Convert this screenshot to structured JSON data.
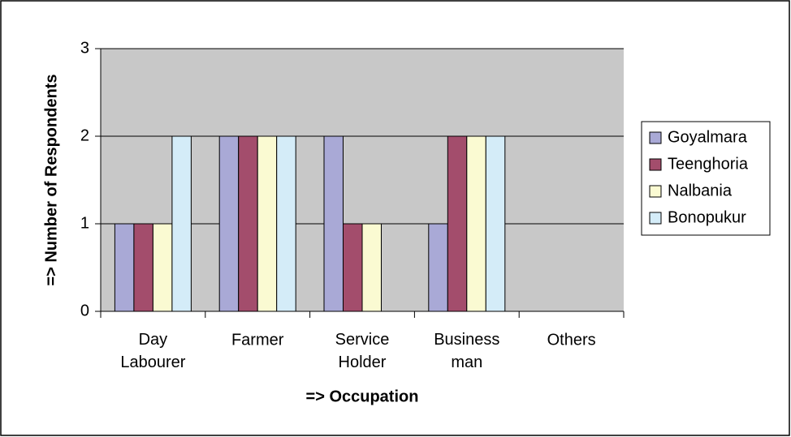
{
  "chart_data": {
    "type": "bar",
    "x_label": "=> Occupation",
    "y_label": "=> Number of Respondents",
    "categories": [
      "Day Labourer",
      "Farmer",
      "Service Holder",
      "Business man",
      "Others"
    ],
    "series": [
      {
        "name": "Goyalmara",
        "color": "#a9a9d6",
        "values": [
          1,
          2,
          2,
          1,
          0
        ]
      },
      {
        "name": "Teenghoria",
        "color": "#a34d6c",
        "values": [
          1,
          2,
          1,
          2,
          0
        ]
      },
      {
        "name": "Nalbania",
        "color": "#fafad2",
        "values": [
          1,
          2,
          1,
          2,
          0
        ]
      },
      {
        "name": "Bonopukur",
        "color": "#d4ecf8",
        "values": [
          2,
          2,
          0,
          2,
          0
        ]
      }
    ],
    "ylim": [
      0,
      3
    ],
    "yticks": [
      0,
      1,
      2,
      3
    ],
    "grid": true,
    "legend": "right"
  }
}
